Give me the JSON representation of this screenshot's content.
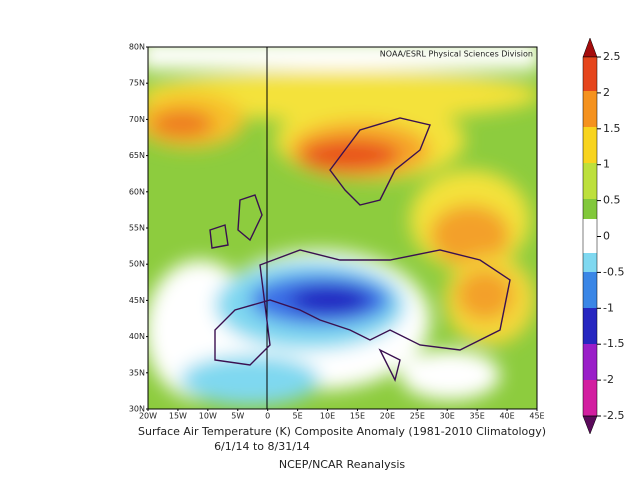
{
  "header": {
    "credit": "NOAA/ESRL Physical Sciences Division"
  },
  "map": {
    "lat_labels": [
      "80N",
      "75N",
      "70N",
      "65N",
      "60N",
      "55N",
      "50N",
      "45N",
      "40N",
      "35N",
      "30N"
    ],
    "lon_labels": [
      "20W",
      "15W",
      "10W",
      "5W",
      "0",
      "5E",
      "10E",
      "15E",
      "20E",
      "25E",
      "30E",
      "35E",
      "40E",
      "45E"
    ]
  },
  "colorbar": {
    "ticks": [
      2.5,
      2,
      1.5,
      1,
      0.5,
      0,
      -0.5,
      -1,
      -1.5,
      -2,
      -2.5
    ],
    "range": [
      -2.5,
      2.5
    ]
  },
  "caption": {
    "title": "Surface Air Temperature (K) Composite Anomaly (1981-2010 Climatology)",
    "dates": "6/1/14  to 8/31/14",
    "source": "NCEP/NCAR Reanalysis"
  }
}
